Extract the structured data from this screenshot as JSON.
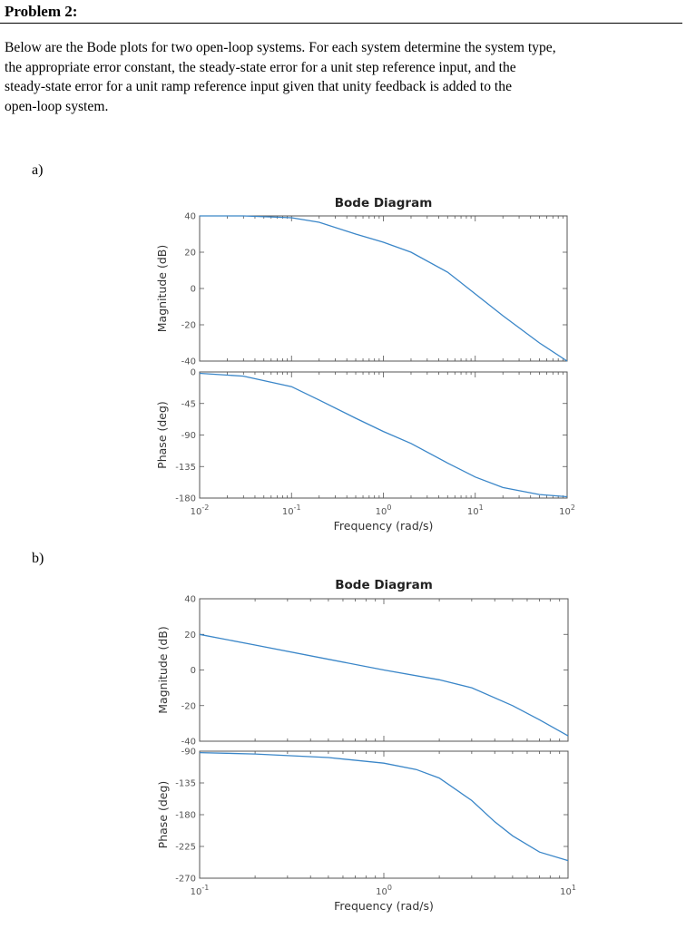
{
  "problem": {
    "heading": "Problem 2:",
    "line1": "Below are the Bode plots for two open-loop systems. For each system determine the system type,",
    "line2": "the appropriate error constant, the steady-state error for a unit step reference input, and the",
    "line3": "steady-state error for a unit ramp reference input given that unity feedback is added to the",
    "line4": "open-loop system."
  },
  "parts": [
    {
      "label": "a)"
    },
    {
      "label": "b)"
    }
  ],
  "colors": {
    "curve": "#3a86c8",
    "axes": "#555555",
    "text": "#000000"
  },
  "chart_data": [
    {
      "type": "line",
      "title": "Bode Diagram",
      "xlabel": "Frequency (rad/s)",
      "x_scale": "log",
      "xlim": [
        0.01,
        100
      ],
      "xticks": [
        {
          "value": 0.01,
          "base": "10",
          "exp": "-2"
        },
        {
          "value": 0.1,
          "base": "10",
          "exp": "-1"
        },
        {
          "value": 1,
          "base": "10",
          "exp": "0"
        },
        {
          "value": 10,
          "base": "10",
          "exp": "1"
        },
        {
          "value": 100,
          "base": "10",
          "exp": "2"
        }
      ],
      "magnitude": {
        "ylabel": "Magnitude (dB)",
        "ylim": [
          -40,
          40
        ],
        "yticks": [
          -40,
          -20,
          0,
          20,
          40
        ],
        "x": [
          0.01,
          0.03,
          0.1,
          0.2,
          0.5,
          1,
          2,
          5,
          10,
          20,
          50,
          100
        ],
        "y": [
          40,
          40,
          39,
          36.5,
          30,
          25.5,
          20,
          9,
          -3,
          -15,
          -30,
          -40
        ]
      },
      "phase": {
        "ylabel": "Phase (deg)",
        "ylim": [
          -180,
          0
        ],
        "yticks": [
          -180,
          -135,
          -90,
          -45,
          0
        ],
        "x": [
          0.01,
          0.03,
          0.1,
          0.2,
          0.5,
          1,
          2,
          5,
          10,
          20,
          50,
          100
        ],
        "y": [
          -2,
          -6,
          -21,
          -40,
          -66,
          -85,
          -102,
          -130,
          -150,
          -165,
          -175,
          -178
        ]
      }
    },
    {
      "type": "line",
      "title": "Bode Diagram",
      "xlabel": "Frequency (rad/s)",
      "x_scale": "log",
      "xlim": [
        0.1,
        10
      ],
      "xticks": [
        {
          "value": 0.1,
          "base": "10",
          "exp": "-1"
        },
        {
          "value": 1,
          "base": "10",
          "exp": "0"
        },
        {
          "value": 10,
          "base": "10",
          "exp": "1"
        }
      ],
      "magnitude": {
        "ylabel": "Magnitude (dB)",
        "ylim": [
          -40,
          40
        ],
        "yticks": [
          -40,
          -20,
          0,
          20,
          40
        ],
        "x": [
          0.1,
          0.2,
          0.5,
          1,
          2,
          3,
          5,
          7,
          10
        ],
        "y": [
          20,
          14,
          6,
          0,
          -5.5,
          -10,
          -20,
          -28,
          -37
        ]
      },
      "phase": {
        "ylabel": "Phase (deg)",
        "ylim": [
          -270,
          -90
        ],
        "yticks": [
          -270,
          -225,
          -180,
          -135,
          -90
        ],
        "x": [
          0.1,
          0.2,
          0.5,
          1,
          1.5,
          2,
          3,
          4,
          5,
          7,
          10
        ],
        "y": [
          -92,
          -94,
          -99,
          -107,
          -116,
          -128,
          -160,
          -190,
          -210,
          -233,
          -245
        ]
      }
    }
  ]
}
